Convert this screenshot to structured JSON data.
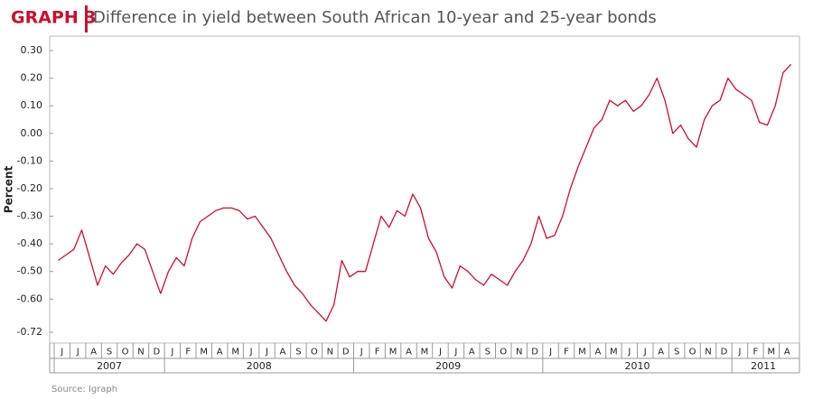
{
  "chart_data": {
    "type": "line",
    "label": "GRAPH 3",
    "title": "Difference in yield between South African 10-year and 25-year bonds",
    "ylabel": "Percent",
    "source": "Source: Igraph",
    "color": "#c8102e",
    "ylim": [
      -0.72,
      0.3
    ],
    "yticks": [
      {
        "value": 0.3,
        "label": "0.30"
      },
      {
        "value": 0.2,
        "label": "0.20"
      },
      {
        "value": 0.1,
        "label": "0.10"
      },
      {
        "value": 0,
        "label": "0.00"
      },
      {
        "value": -0.1,
        "label": "-0.10"
      },
      {
        "value": -0.2,
        "label": "-0.20"
      },
      {
        "value": -0.3,
        "label": "-0.30"
      },
      {
        "value": -0.4,
        "label": "-0.40"
      },
      {
        "value": -0.5,
        "label": "-0.50"
      },
      {
        "value": -0.6,
        "label": "-0.60"
      },
      -0.72
    ],
    "months": [
      "J",
      "J",
      "A",
      "S",
      "O",
      "N",
      "D",
      "J",
      "F",
      "M",
      "A",
      "M",
      "J",
      "J",
      "A",
      "S",
      "O",
      "N",
      "D",
      "J",
      "F",
      "M",
      "A",
      "M",
      "J",
      "J",
      "A",
      "S",
      "O",
      "N",
      "D",
      "J",
      "F",
      "M",
      "A",
      "M",
      "J",
      "J",
      "A",
      "S",
      "O",
      "N",
      "D",
      "J",
      "F",
      "M",
      "A"
    ],
    "years": [
      {
        "label": "2007",
        "months": 7
      },
      {
        "label": "2008",
        "months": 12
      },
      {
        "label": "2009",
        "months": 12
      },
      {
        "label": "2010",
        "months": 12
      },
      {
        "label": "2011",
        "months": 4
      }
    ],
    "values": [
      -0.46,
      -0.44,
      -0.42,
      -0.35,
      -0.45,
      -0.55,
      -0.48,
      -0.51,
      -0.47,
      -0.44,
      -0.4,
      -0.42,
      -0.5,
      -0.58,
      -0.5,
      -0.45,
      -0.48,
      -0.38,
      -0.32,
      -0.3,
      -0.28,
      -0.27,
      -0.27,
      -0.28,
      -0.31,
      -0.3,
      -0.34,
      -0.38,
      -0.44,
      -0.5,
      -0.55,
      -0.58,
      -0.62,
      -0.65,
      -0.68,
      -0.62,
      -0.46,
      -0.52,
      -0.5,
      -0.5,
      -0.4,
      -0.3,
      -0.34,
      -0.28,
      -0.3,
      -0.22,
      -0.27,
      -0.38,
      -0.43,
      -0.52,
      -0.56,
      -0.48,
      -0.5,
      -0.53,
      -0.55,
      -0.51,
      -0.53,
      -0.55,
      -0.5,
      -0.46,
      -0.4,
      -0.3,
      -0.38,
      -0.37,
      -0.3,
      -0.2,
      -0.12,
      -0.05,
      0.02,
      0.05,
      0.12,
      0.1,
      0.12,
      0.08,
      0.1,
      0.14,
      0.2,
      0.12,
      0.0,
      0.03,
      -0.02,
      -0.05,
      0.05,
      0.1,
      0.12,
      0.2,
      0.16,
      0.14,
      0.12,
      0.04,
      0.03,
      0.1,
      0.22,
      0.25
    ]
  }
}
